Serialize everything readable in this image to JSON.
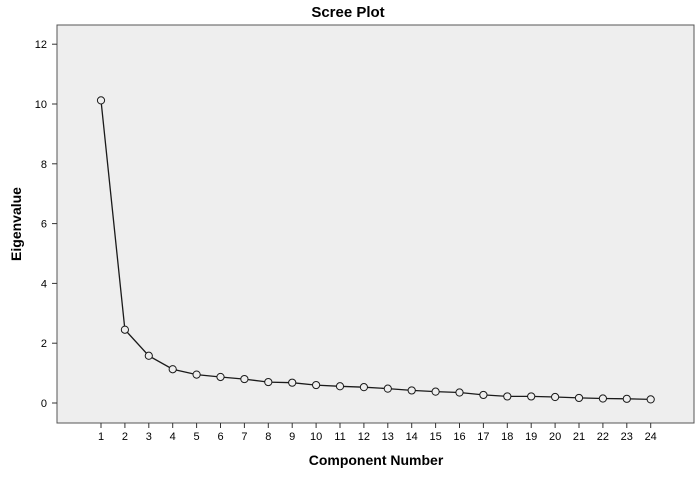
{
  "chart_data": {
    "type": "line",
    "title": "Scree Plot",
    "xlabel": "Component Number",
    "ylabel": "Eigenvalue",
    "ylim": [
      0,
      12
    ],
    "yticks": [
      0,
      2,
      4,
      6,
      8,
      10,
      12
    ],
    "x": [
      1,
      2,
      3,
      4,
      5,
      6,
      7,
      8,
      9,
      10,
      11,
      12,
      13,
      14,
      15,
      16,
      17,
      18,
      19,
      20,
      21,
      22,
      23,
      24
    ],
    "series": [
      {
        "values": [
          10.12,
          2.45,
          1.58,
          1.13,
          0.95,
          0.87,
          0.8,
          0.7,
          0.68,
          0.6,
          0.56,
          0.53,
          0.48,
          0.42,
          0.38,
          0.35,
          0.27,
          0.22,
          0.22,
          0.2,
          0.17,
          0.15,
          0.14,
          0.12
        ]
      }
    ],
    "grid": false,
    "legend": "none",
    "colors": {
      "plot_background": "#eeeeee",
      "line": "#1a1a1a",
      "marker_fill": "#eeeeee"
    }
  }
}
